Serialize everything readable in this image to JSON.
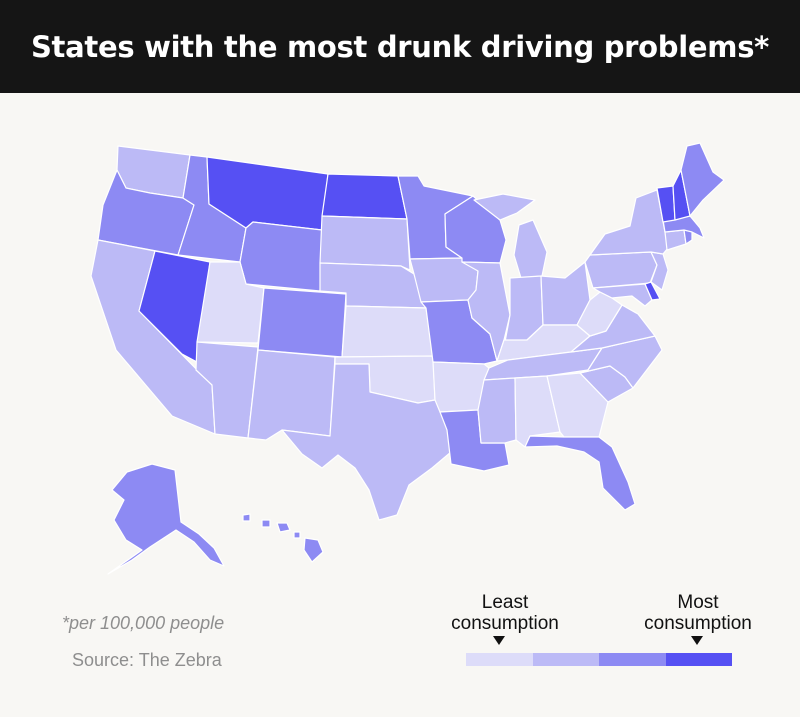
{
  "title": "States with the most drunk driving problems*",
  "footnote": "*per 100,000 people",
  "source": "Source: The Zebra",
  "legend": {
    "least_label": "Least consumption",
    "most_label": "Most consumption",
    "colors": [
      "#dddcf9",
      "#bcbaf6",
      "#8d8af3",
      "#5650f3"
    ]
  },
  "map": {
    "type": "choropleth",
    "region": "United States",
    "levels": {
      "1": "#dddcf9",
      "2": "#bcbaf6",
      "3": "#8d8af3",
      "4": "#5650f3"
    },
    "states": {
      "WA": 2,
      "OR": 3,
      "CA": 2,
      "NV": 4,
      "ID": 3,
      "MT": 4,
      "WY": 3,
      "UT": 1,
      "AZ": 2,
      "CO": 3,
      "NM": 2,
      "ND": 4,
      "SD": 2,
      "NE": 2,
      "KS": 1,
      "OK": 1,
      "TX": 2,
      "MN": 3,
      "IA": 2,
      "MO": 3,
      "AR": 1,
      "LA": 3,
      "WI": 3,
      "IL": 2,
      "MI": 2,
      "IN": 2,
      "OH": 2,
      "KY": 1,
      "TN": 2,
      "MS": 2,
      "AL": 1,
      "GA": 1,
      "FL": 3,
      "SC": 2,
      "NC": 2,
      "VA": 2,
      "WV": 1,
      "PA": 2,
      "NY": 2,
      "VT": 4,
      "NH": 4,
      "ME": 3,
      "MA": 3,
      "RI": 3,
      "CT": 2,
      "NJ": 2,
      "DE": 4,
      "MD": 2,
      "AK": 3,
      "HI": 3
    }
  }
}
